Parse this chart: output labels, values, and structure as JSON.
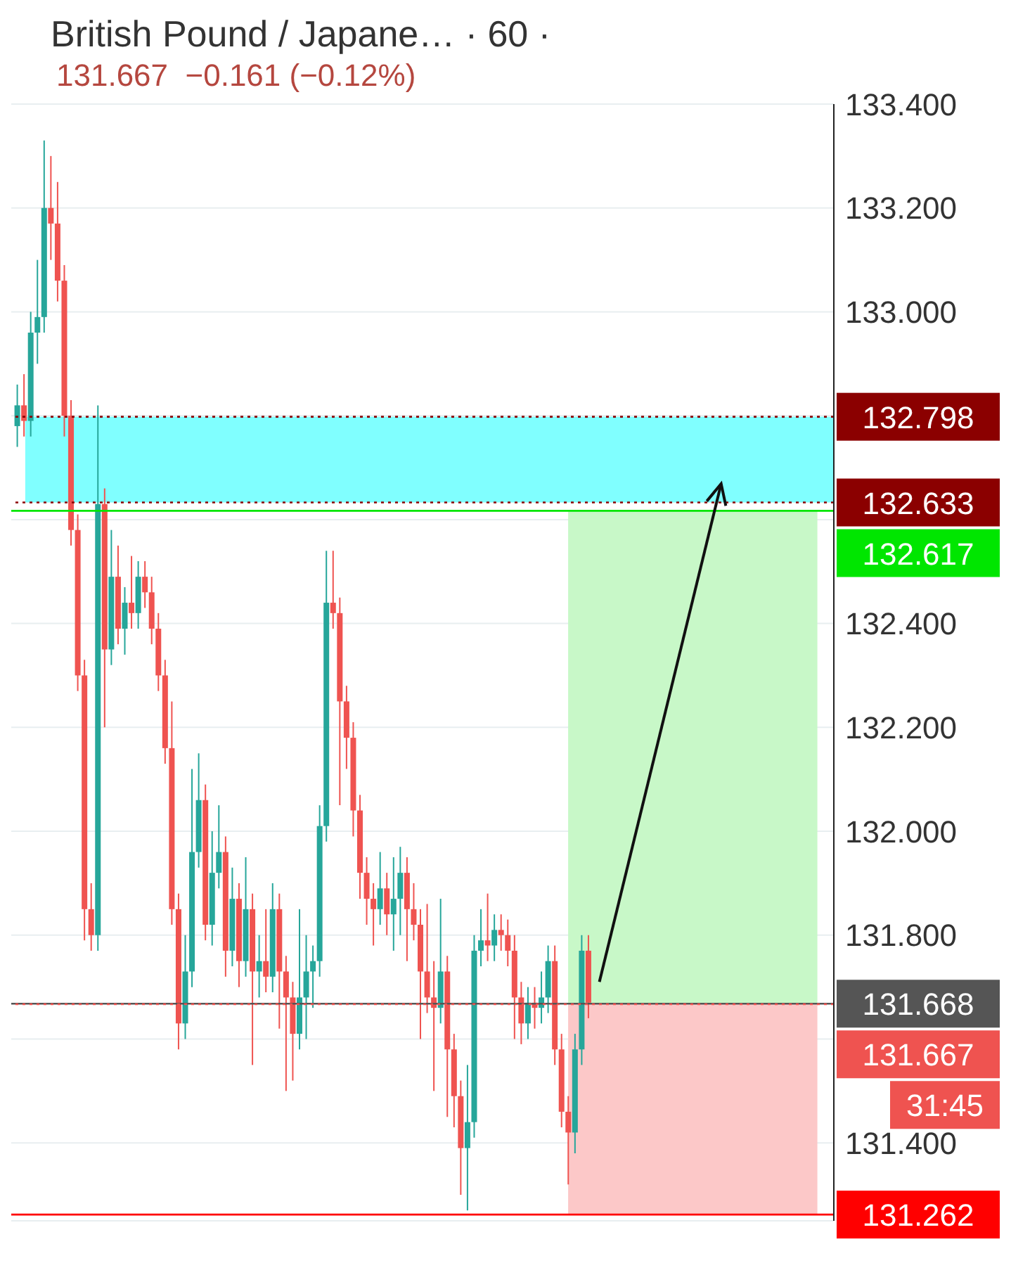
{
  "chart_data": {
    "type": "candlestick",
    "title": "British Pound / Japane… · 60 ·",
    "subtitle": "131.667  −0.161 (−0.12%)",
    "categories": [
      null,
      null,
      null,
      null,
      null,
      null,
      null,
      null,
      null,
      null,
      null,
      null,
      null,
      null,
      null,
      null,
      null,
      null,
      null,
      null,
      null,
      null,
      null,
      null,
      null,
      null,
      null,
      null,
      null,
      null,
      null,
      null,
      null,
      null,
      null,
      null,
      null,
      null,
      null,
      null,
      null,
      null,
      null,
      null,
      null,
      null,
      null,
      null,
      null,
      null,
      null,
      null,
      null,
      null,
      null,
      null,
      null,
      null,
      null,
      null,
      null,
      null,
      null,
      null,
      null,
      null,
      null,
      null,
      null,
      null,
      null,
      null,
      null,
      null,
      null,
      null,
      null,
      null,
      null,
      null,
      null,
      null,
      null,
      null,
      null,
      null,
      null,
      null,
      null,
      null,
      null,
      null,
      null,
      null,
      null,
      null,
      null,
      null,
      null,
      null,
      null,
      null,
      null,
      null,
      null,
      null,
      null,
      null,
      null,
      null,
      null,
      null,
      null,
      null,
      null,
      null,
      null,
      null,
      null,
      null,
      null,
      null
    ],
    "ohlc": [
      [
        132.78,
        132.86,
        132.74,
        132.82
      ],
      [
        132.82,
        132.88,
        132.76,
        132.79
      ],
      [
        132.79,
        133.0,
        132.76,
        132.96
      ],
      [
        132.96,
        133.1,
        132.9,
        132.99
      ],
      [
        132.99,
        133.33,
        132.96,
        133.2
      ],
      [
        133.2,
        133.3,
        133.1,
        133.17
      ],
      [
        133.17,
        133.25,
        133.02,
        133.06
      ],
      [
        133.06,
        133.09,
        132.76,
        132.8
      ],
      [
        132.8,
        132.83,
        132.55,
        132.58
      ],
      [
        132.58,
        132.61,
        132.27,
        132.3
      ],
      [
        132.3,
        132.33,
        131.79,
        131.85
      ],
      [
        131.85,
        131.9,
        131.77,
        131.8
      ],
      [
        131.8,
        132.82,
        131.77,
        132.63
      ],
      [
        132.63,
        132.66,
        132.2,
        132.35
      ],
      [
        132.35,
        132.58,
        132.32,
        132.49
      ],
      [
        132.49,
        132.55,
        132.36,
        132.39
      ],
      [
        132.39,
        132.47,
        132.34,
        132.44
      ],
      [
        132.44,
        132.53,
        132.39,
        132.42
      ],
      [
        132.42,
        132.52,
        132.39,
        132.49
      ],
      [
        132.49,
        132.52,
        132.43,
        132.46
      ],
      [
        132.46,
        132.49,
        132.36,
        132.39
      ],
      [
        132.39,
        132.42,
        132.27,
        132.3
      ],
      [
        132.3,
        132.33,
        132.13,
        132.16
      ],
      [
        132.16,
        132.25,
        131.82,
        131.85
      ],
      [
        131.85,
        131.88,
        131.58,
        131.63
      ],
      [
        131.63,
        131.8,
        131.6,
        131.73
      ],
      [
        131.73,
        132.12,
        131.7,
        131.96
      ],
      [
        131.96,
        132.15,
        131.93,
        132.06
      ],
      [
        132.06,
        132.09,
        131.79,
        131.82
      ],
      [
        131.82,
        132.0,
        131.78,
        131.92
      ],
      [
        131.92,
        132.05,
        131.89,
        131.96
      ],
      [
        131.96,
        131.99,
        131.72,
        131.77
      ],
      [
        131.77,
        131.93,
        131.74,
        131.87
      ],
      [
        131.87,
        131.9,
        131.7,
        131.75
      ],
      [
        131.75,
        131.95,
        131.72,
        131.85
      ],
      [
        131.85,
        131.88,
        131.55,
        131.73
      ],
      [
        131.73,
        131.8,
        131.68,
        131.75
      ],
      [
        131.75,
        131.85,
        131.69,
        131.72
      ],
      [
        131.72,
        131.9,
        131.69,
        131.85
      ],
      [
        131.85,
        131.88,
        131.62,
        131.73
      ],
      [
        131.73,
        131.76,
        131.5,
        131.68
      ],
      [
        131.68,
        131.71,
        131.52,
        131.61
      ],
      [
        131.61,
        131.85,
        131.58,
        131.68
      ],
      [
        131.68,
        131.8,
        131.6,
        131.73
      ],
      [
        131.73,
        131.78,
        131.66,
        131.75
      ],
      [
        131.75,
        132.05,
        131.72,
        132.01
      ],
      [
        132.01,
        132.54,
        131.98,
        132.44
      ],
      [
        132.44,
        132.54,
        132.39,
        132.42
      ],
      [
        132.42,
        132.45,
        132.05,
        132.25
      ],
      [
        132.25,
        132.28,
        132.12,
        132.18
      ],
      [
        132.18,
        132.21,
        131.99,
        132.04
      ],
      [
        132.04,
        132.07,
        131.87,
        131.92
      ],
      [
        131.92,
        131.95,
        131.82,
        131.87
      ],
      [
        131.87,
        131.9,
        131.78,
        131.85
      ],
      [
        131.85,
        131.96,
        131.82,
        131.89
      ],
      [
        131.89,
        131.92,
        131.8,
        131.84
      ],
      [
        131.84,
        131.95,
        131.77,
        131.87
      ],
      [
        131.87,
        131.97,
        131.8,
        131.92
      ],
      [
        131.92,
        131.95,
        131.75,
        131.85
      ],
      [
        131.85,
        131.9,
        131.79,
        131.82
      ],
      [
        131.82,
        131.85,
        131.6,
        131.73
      ],
      [
        131.73,
        131.86,
        131.65,
        131.68
      ],
      [
        131.68,
        131.75,
        131.5,
        131.66
      ],
      [
        131.66,
        131.87,
        131.63,
        131.73
      ],
      [
        131.73,
        131.76,
        131.45,
        131.58
      ],
      [
        131.58,
        131.61,
        131.43,
        131.49
      ],
      [
        131.49,
        131.52,
        131.3,
        131.39
      ],
      [
        131.39,
        131.55,
        131.27,
        131.44
      ],
      [
        131.44,
        131.8,
        131.41,
        131.77
      ],
      [
        131.77,
        131.85,
        131.74,
        131.79
      ],
      [
        131.79,
        131.88,
        131.75,
        131.78
      ],
      [
        131.78,
        131.84,
        131.75,
        131.81
      ],
      [
        131.81,
        131.84,
        131.77,
        131.8
      ],
      [
        131.8,
        131.83,
        131.74,
        131.77
      ],
      [
        131.77,
        131.8,
        131.6,
        131.68
      ],
      [
        131.68,
        131.71,
        131.59,
        131.63
      ],
      [
        131.63,
        131.7,
        131.6,
        131.67
      ],
      [
        131.67,
        131.7,
        131.62,
        131.66
      ],
      [
        131.66,
        131.73,
        131.63,
        131.68
      ],
      [
        131.68,
        131.78,
        131.65,
        131.75
      ],
      [
        131.75,
        131.78,
        131.55,
        131.58
      ],
      [
        131.58,
        131.61,
        131.43,
        131.46
      ],
      [
        131.46,
        131.49,
        131.32,
        131.42
      ],
      [
        131.42,
        131.61,
        131.38,
        131.58
      ],
      [
        131.58,
        131.8,
        131.55,
        131.77
      ],
      [
        131.77,
        131.8,
        131.64,
        131.67
      ],
      null,
      null,
      null,
      null,
      null,
      null,
      null,
      null,
      null,
      null,
      null,
      null,
      null,
      null,
      null,
      null,
      null,
      null,
      null,
      null,
      null,
      null,
      null,
      null,
      null,
      null,
      null,
      null,
      null,
      null,
      null,
      null,
      null,
      null,
      null,
      null
    ],
    "colors": [
      "#26a69a",
      "#ef5350",
      "#26a69a",
      "#26a69a",
      "#26a69a",
      "#ef5350",
      "#ef5350",
      "#ef5350",
      "#ef5350",
      "#ef5350",
      "#ef5350",
      "#ef5350",
      "#26a69a",
      "#ef5350",
      "#26a69a",
      "#ef5350",
      "#26a69a",
      "#ef5350",
      "#26a69a",
      "#ef5350",
      "#ef5350",
      "#ef5350",
      "#ef5350",
      "#ef5350",
      "#ef5350",
      "#26a69a",
      "#26a69a",
      "#26a69a",
      "#ef5350",
      "#26a69a",
      "#26a69a",
      "#ef5350",
      "#26a69a",
      "#ef5350",
      "#26a69a",
      "#ef5350",
      "#26a69a",
      "#ef5350",
      "#26a69a",
      "#ef5350",
      "#ef5350",
      "#ef5350",
      "#26a69a",
      "#26a69a",
      "#26a69a",
      "#26a69a",
      "#26a69a",
      "#ef5350",
      "#ef5350",
      "#ef5350",
      "#ef5350",
      "#ef5350",
      "#ef5350",
      "#ef5350",
      "#26a69a",
      "#ef5350",
      "#26a69a",
      "#26a69a",
      "#ef5350",
      "#ef5350",
      "#ef5350",
      "#ef5350",
      "#ef5350",
      "#26a69a",
      "#ef5350",
      "#ef5350",
      "#ef5350",
      "#26a69a",
      "#26a69a",
      "#26a69a",
      "#ef5350",
      "#26a69a",
      "#ef5350",
      "#ef5350",
      "#ef5350",
      "#ef5350",
      "#26a69a",
      "#ef5350",
      "#26a69a",
      "#26a69a",
      "#ef5350",
      "#ef5350",
      "#ef5350",
      "#26a69a",
      "#26a69a",
      "#ef5350",
      null,
      null,
      null,
      null,
      null,
      null,
      null,
      null,
      null,
      null,
      null,
      null,
      null,
      null,
      null,
      null,
      null,
      null,
      null,
      null,
      null,
      null,
      null,
      null,
      null,
      null,
      null,
      null,
      null,
      null,
      null,
      null,
      null,
      null,
      null,
      null
    ],
    "ylim": [
      131.25,
      133.4
    ],
    "yticks": [
      {
        "value": 131.4,
        "label": "131.400"
      },
      {
        "value": 131.6,
        "label": null
      },
      {
        "value": 131.8,
        "label": "131.800"
      },
      {
        "value": 132.0,
        "label": "132.000"
      },
      {
        "value": 132.2,
        "label": "132.200"
      },
      {
        "value": 132.4,
        "label": "132.400"
      },
      {
        "value": 132.6,
        "label": null
      },
      {
        "value": 132.8,
        "label": null
      },
      {
        "value": 133.0,
        "label": "133.000"
      },
      {
        "value": 133.2,
        "label": "133.200"
      },
      {
        "value": 133.4,
        "label": "133.400"
      }
    ],
    "tick_labels": "y",
    "grid": "y",
    "bands": [
      {
        "axis": "y",
        "from": 132.633,
        "to": 132.798,
        "color": "#80ffff"
      },
      {
        "axis": "y",
        "from": 131.668,
        "to": 132.617,
        "color": "#c8f8c8"
      },
      {
        "axis": "y",
        "from": 131.262,
        "to": 131.668,
        "color": "#fcc8c8"
      }
    ],
    "ref_lines": [
      {
        "axis": "y",
        "value": 132.798,
        "label": "132.798",
        "color": "#8b0000",
        "line_style": "dotted"
      },
      {
        "axis": "y",
        "value": 132.633,
        "label": "132.633",
        "color": "#8b0000",
        "line_style": "dotted"
      },
      {
        "axis": "y",
        "value": 132.617,
        "label": "132.617",
        "color": "#00e600",
        "line_style": "solid"
      },
      {
        "axis": "y",
        "value": 131.668,
        "label": "131.668",
        "color": "#555555",
        "line_style": "solid"
      },
      {
        "axis": "y",
        "value": 131.667,
        "label": "131.667",
        "color": "#ef5350",
        "line_style": "dotted"
      },
      {
        "axis": "y",
        "value": 131.262,
        "label": "131.262",
        "color": "#ff0000",
        "line_style": "solid"
      }
    ],
    "annotations": [
      "31:45"
    ]
  }
}
